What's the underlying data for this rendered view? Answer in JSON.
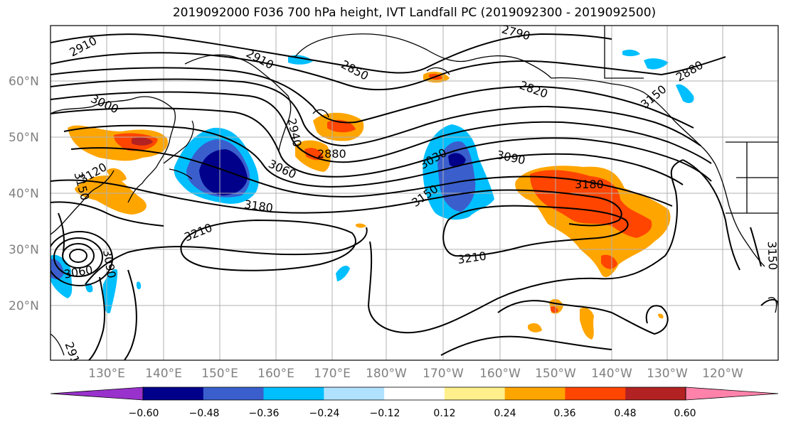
{
  "title": "2019092000 F036 700 hPa height, IVT Landfall PC (2019092300 - 2019092500)",
  "lat_labels": [
    "60°N",
    "50°N",
    "40°N",
    "30°N",
    "20°N"
  ],
  "lon_labels": [
    "130°E",
    "140°E",
    "150°E",
    "160°E",
    "170°E",
    "180°W",
    "170°W",
    "160°W",
    "150°W",
    "140°W",
    "130°W",
    "120°W"
  ],
  "contour_labels": [
    "2910",
    "2790",
    "2910",
    "2850",
    "2880",
    "3000",
    "2940",
    "2820",
    "2880",
    "3030",
    "3090",
    "3060",
    "3120",
    "3150",
    "3150",
    "3180",
    "3180",
    "3210",
    "3210",
    "3060",
    "3090",
    "3150",
    "2910",
    "3150"
  ],
  "colorbar": {
    "colors": [
      "#9932cc",
      "#00008b",
      "#3a5fcd",
      "#00bfff",
      "#b0e2ff",
      "#ffffff",
      "#fff08c",
      "#ffa500",
      "#ff4500",
      "#b22222",
      "#ff82ab"
    ],
    "ticks": [
      "−0.60",
      "−0.48",
      "−0.36",
      "−0.24",
      "−0.12",
      "0.12",
      "0.24",
      "0.36",
      "0.48",
      "0.60"
    ]
  }
}
